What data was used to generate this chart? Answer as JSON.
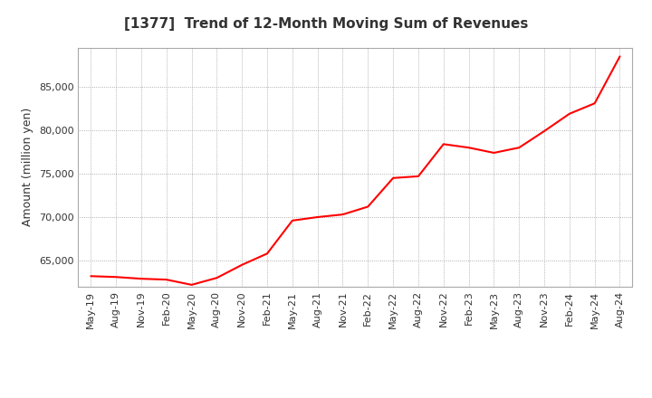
{
  "title": "[1377]  Trend of 12-Month Moving Sum of Revenues",
  "ylabel": "Amount (million yen)",
  "line_color": "#FF0000",
  "background_color": "#FFFFFF",
  "grid_color": "#999999",
  "x_labels": [
    "May-19",
    "Aug-19",
    "Nov-19",
    "Feb-20",
    "May-20",
    "Aug-20",
    "Nov-20",
    "Feb-21",
    "May-21",
    "Aug-21",
    "Nov-21",
    "Feb-22",
    "May-22",
    "Aug-22",
    "Nov-22",
    "Feb-23",
    "May-23",
    "Aug-23",
    "Nov-23",
    "Feb-24",
    "May-24",
    "Aug-24"
  ],
  "values": [
    63200,
    63100,
    62900,
    62800,
    62200,
    63000,
    64500,
    65800,
    69600,
    70000,
    70300,
    71200,
    74500,
    74700,
    78400,
    78000,
    77400,
    78000,
    79900,
    81900,
    83100,
    88500
  ],
  "ylim": [
    62000,
    89500
  ],
  "yticks": [
    65000,
    70000,
    75000,
    80000,
    85000
  ],
  "title_fontsize": 11,
  "label_fontsize": 9,
  "tick_fontsize": 8
}
